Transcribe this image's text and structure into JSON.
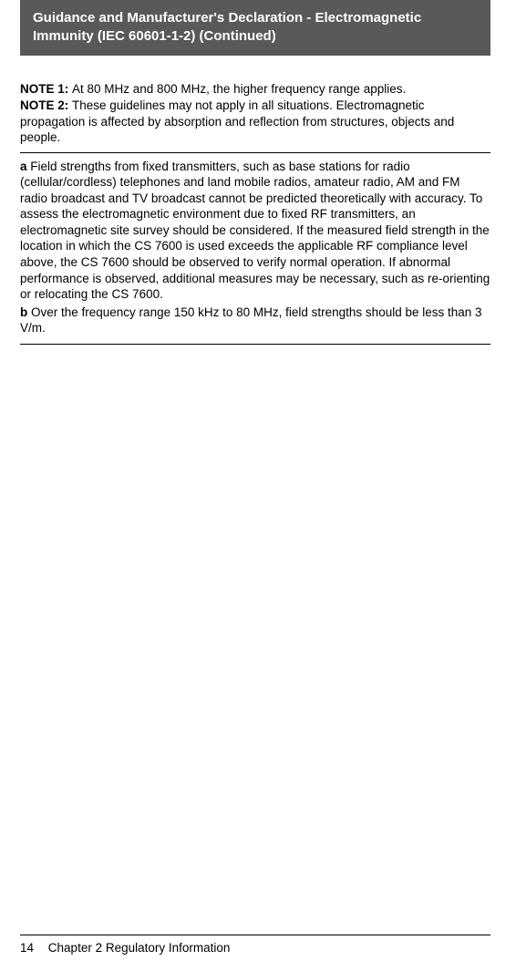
{
  "header": {
    "title": "Guidance and Manufacturer's Declaration - Electromagnetic Immunity (IEC 60601-1-2)  (Continued)"
  },
  "notes": {
    "note1_label": "NOTE 1: ",
    "note1_text": " At 80 MHz and 800 MHz, the higher frequency range applies.",
    "note2_label": "NOTE 2: ",
    "note2_text": "These guidelines may not apply in all situations. Electromagnetic propagation is affected by absorption and reflection from structures, objects and people."
  },
  "footnotes": {
    "a_label": "a ",
    "a_text": "Field strengths from fixed transmitters, such as base stations for radio (cellular/cordless) telephones and land mobile radios, amateur radio, AM and FM radio broadcast and TV broadcast cannot be predicted theoretically with accuracy. To assess the electromagnetic environment due to fixed RF transmitters, an electromagnetic site survey should be considered. If the measured field strength in the location in which the CS 7600 is used exceeds the applicable RF compliance level above, the CS 7600 should be observed to verify normal operation. If abnormal performance is observed, additional measures may be necessary, such as re-orienting or relocating the CS 7600.",
    "b_label": "b ",
    "b_text": "Over the frequency range 150 kHz to 80 MHz, field strengths should be less than 3 V/m."
  },
  "footer": {
    "page_number": "14",
    "chapter": "Chapter 2   Regulatory Information"
  }
}
